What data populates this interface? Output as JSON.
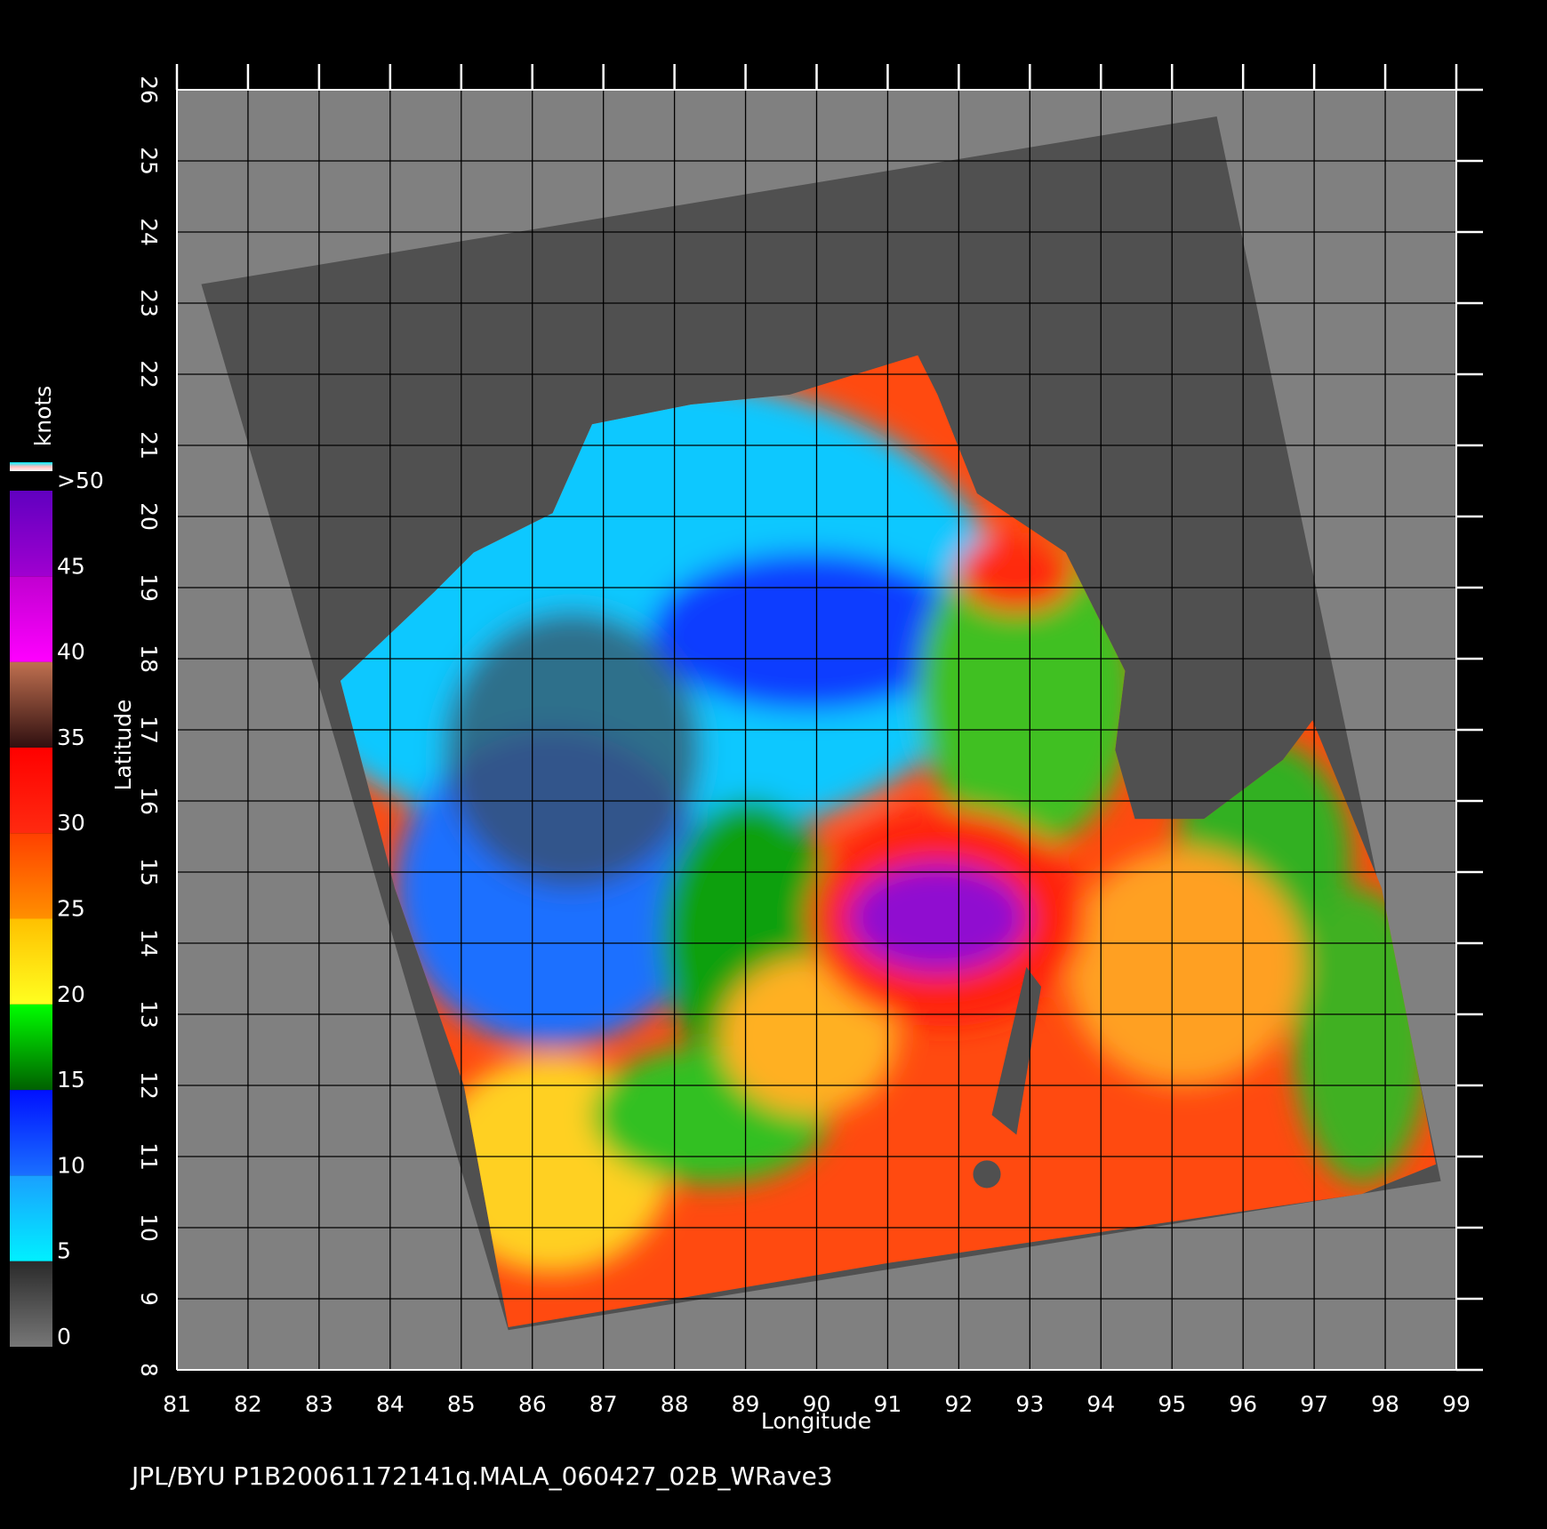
{
  "chart_data": {
    "type": "map",
    "x_label": "Longitude",
    "y_label": "Latitude",
    "xlim": [
      81,
      99
    ],
    "ylim": [
      8,
      26
    ],
    "xticks": [
      81,
      82,
      83,
      84,
      85,
      86,
      87,
      88,
      89,
      90,
      91,
      92,
      93,
      94,
      95,
      96,
      97,
      98,
      99
    ],
    "yticks": [
      8,
      9,
      10,
      11,
      12,
      13,
      14,
      15,
      16,
      17,
      18,
      19,
      20,
      21,
      22,
      23,
      24,
      25,
      26
    ],
    "grid": true,
    "colorbar": {
      "label": "knots",
      "ticks": [
        0,
        5,
        10,
        15,
        20,
        25,
        30,
        35,
        40,
        45,
        {
          "value": 50,
          "label": ">50"
        }
      ],
      "colors": [
        [
          "#777777",
          "#2a2a2a"
        ],
        [
          "#00f0ff",
          "#1aa0ff"
        ],
        [
          "#1a70ff",
          "#0010ff"
        ],
        [
          "#006000",
          "#00ff00"
        ],
        [
          "#ffff20",
          "#ffc000"
        ],
        [
          "#ff9000",
          "#ff4000"
        ],
        [
          "#ff2a10",
          "#ff0000"
        ],
        [
          "#301010",
          "#c07050"
        ],
        [
          "#ff00ff",
          "#c000d0"
        ],
        [
          "#a000d0",
          "#6000c0"
        ]
      ]
    },
    "footer": "JPL/BYU  P1B20061172141q.MALA_060427_02B_WRave3"
  }
}
